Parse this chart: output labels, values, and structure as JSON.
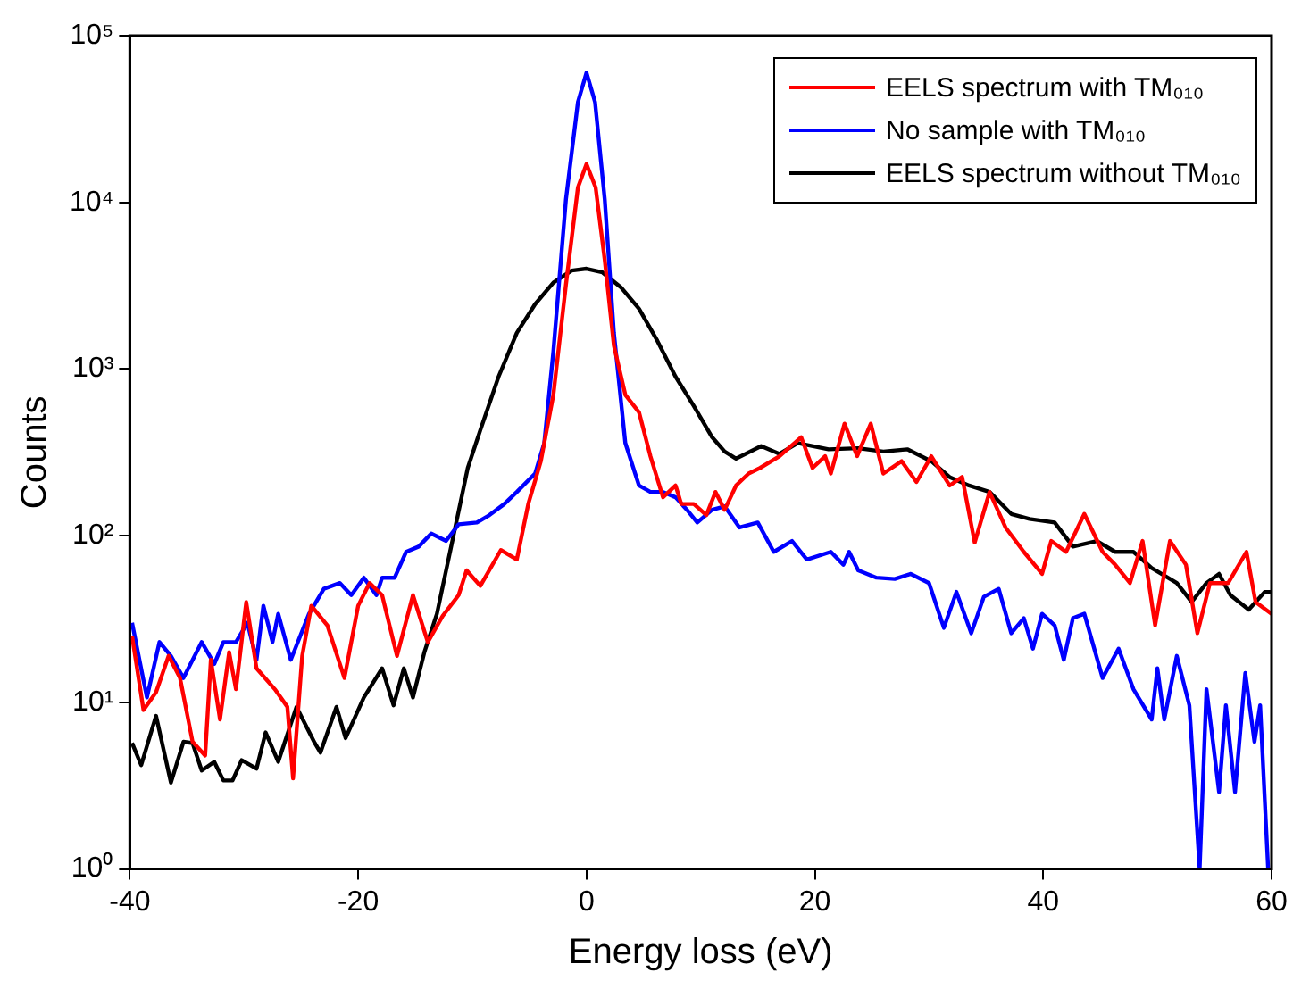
{
  "chart_data": {
    "type": "line",
    "xlabel": "Energy loss (eV)",
    "ylabel": "Counts",
    "log": "y",
    "grid": false,
    "legend": "top right",
    "marker": "none",
    "line_style": "solid",
    "xlim": [
      -40,
      60
    ],
    "xticks": [
      -40,
      -20,
      0,
      20,
      40,
      60
    ],
    "ylim": [
      1,
      100000
    ],
    "yticks": [
      {
        "value": 1,
        "label": "10⁰"
      },
      {
        "value": 10,
        "label": "10¹"
      },
      {
        "value": 100,
        "label": "10²"
      },
      {
        "value": 1000,
        "label": "10³"
      },
      {
        "value": 10000,
        "label": "10⁴"
      },
      {
        "value": 100000,
        "label": "10⁵"
      }
    ],
    "series": [
      {
        "name": "EELS spectrum with TM₀₁₀",
        "color": "#ff0000",
        "x": [
          -39.8,
          -38.8,
          -37.7,
          -36.6,
          -35.6,
          -34.5,
          -33.4,
          -32.9,
          -32.1,
          -31.3,
          -30.7,
          -29.8,
          -28.9,
          -27.3,
          -26.2,
          -25.7,
          -24.9,
          -24.1,
          -22.7,
          -21.2,
          -20,
          -19,
          -17.9,
          -16.6,
          -15.2,
          -13.9,
          -12.6,
          -11.2,
          -10.5,
          -9.3,
          -7.5,
          -6.1,
          -5.1,
          -4,
          -2.9,
          -1.8,
          -0.75,
          0,
          0.8,
          1.6,
          2.4,
          3.4,
          4.6,
          5.6,
          6.7,
          7.8,
          8.3,
          9.4,
          10.5,
          11.3,
          12.1,
          13.1,
          14.2,
          15.2,
          16.9,
          18.8,
          19.8,
          20.9,
          21.4,
          22.6,
          23.7,
          24.9,
          26,
          27.6,
          28.9,
          30.2,
          31.8,
          32.9,
          34,
          35.3,
          36.7,
          38.3,
          39.9,
          40.7,
          42,
          43.6,
          45.2,
          46.3,
          47.6,
          48.7,
          49.8,
          51.1,
          52.5,
          53.5,
          54.6,
          56.2,
          57.8,
          58.6,
          60
        ],
        "values": [
          25,
          9,
          11.5,
          19,
          14,
          5.8,
          4.8,
          18,
          7.9,
          20,
          12,
          40,
          16,
          12,
          9.4,
          3.5,
          19,
          38,
          29,
          14,
          38,
          52,
          44,
          19,
          44,
          23,
          33,
          44,
          62,
          50,
          82,
          72,
          155,
          280,
          700,
          3200,
          12300,
          17000,
          12300,
          4500,
          1380,
          700,
          550,
          300,
          170,
          200,
          155,
          155,
          133,
          183,
          143,
          200,
          236,
          255,
          300,
          390,
          255,
          300,
          236,
          470,
          300,
          470,
          236,
          280,
          210,
          300,
          200,
          225,
          91,
          183,
          112,
          80,
          59,
          93,
          80,
          135,
          80,
          67,
          52,
          93,
          29,
          93,
          67,
          26,
          52,
          52,
          80,
          40,
          34
        ]
      },
      {
        "name": "No sample with TM₀₁₀",
        "color": "#0000ff",
        "x": [
          -39.8,
          -38.5,
          -37.4,
          -36.4,
          -35.3,
          -33.7,
          -32.6,
          -31.8,
          -30.7,
          -29.7,
          -28.9,
          -28.3,
          -27.5,
          -27,
          -25.9,
          -24.3,
          -23,
          -21.6,
          -20.6,
          -19.5,
          -18.4,
          -17.9,
          -16.8,
          -15.8,
          -14.7,
          -13.6,
          -12.3,
          -11.2,
          -9.6,
          -8.5,
          -7.2,
          -6.1,
          -4.5,
          -3.7,
          -2.9,
          -1.8,
          -0.75,
          0,
          0.75,
          1.6,
          2.4,
          3.4,
          4.6,
          5.6,
          6.7,
          7.8,
          8.8,
          9.7,
          11,
          12.1,
          13.4,
          15,
          16.4,
          18,
          19.3,
          21.4,
          22.5,
          23,
          23.8,
          25.4,
          27,
          28.4,
          30,
          31.3,
          32.4,
          33.7,
          34.8,
          36.1,
          37.2,
          38.3,
          39.1,
          39.9,
          41,
          41.8,
          42.6,
          43.6,
          45.2,
          46.6,
          47.9,
          49.5,
          50,
          50.6,
          51.7,
          52.8,
          53.7,
          54.3,
          55.4,
          56,
          56.8,
          57.7,
          58.5,
          59,
          59.7
        ],
        "values": [
          30,
          10.7,
          23,
          19,
          14,
          23,
          17,
          23,
          23,
          30,
          18,
          38,
          23,
          34,
          18,
          34,
          48,
          52,
          44,
          56,
          44,
          56,
          56,
          80,
          86,
          103,
          93,
          117,
          120,
          133,
          155,
          183,
          236,
          360,
          1280,
          10400,
          40000,
          60000,
          40000,
          10400,
          1650,
          360,
          200,
          183,
          183,
          170,
          143,
          120,
          143,
          150,
          112,
          120,
          80,
          93,
          72,
          80,
          67,
          80,
          62,
          56,
          55,
          59,
          52,
          28,
          46,
          26,
          43,
          48,
          26,
          32,
          21,
          34,
          29,
          18,
          32,
          34,
          14,
          21,
          12,
          7.9,
          16,
          7.9,
          19,
          9.6,
          1,
          12,
          2.9,
          9.6,
          2.9,
          15,
          5.8,
          9.6,
          1
        ]
      },
      {
        "name": "EELS spectrum without TM₀₁₀",
        "color": "#000000",
        "x": [
          -39.8,
          -39,
          -37.7,
          -36.4,
          -35.3,
          -34.5,
          -33.7,
          -32.6,
          -31.8,
          -31,
          -30.2,
          -28.9,
          -28.1,
          -27,
          -25.4,
          -23.8,
          -23.3,
          -21.9,
          -21.1,
          -19.5,
          -17.9,
          -16.9,
          -16,
          -15.2,
          -14.2,
          -13.1,
          -11.5,
          -10.4,
          -9.3,
          -7.7,
          -6.1,
          -4.5,
          -2.9,
          -1.3,
          0,
          1.4,
          3,
          4.6,
          6.2,
          7.8,
          9.4,
          11,
          12.1,
          13.1,
          15.3,
          16.9,
          18.5,
          21.2,
          23.8,
          26,
          28.1,
          30.2,
          31.8,
          33.5,
          35.3,
          37.2,
          38.8,
          41,
          42.6,
          44.7,
          46.3,
          47.9,
          49.5,
          51.7,
          53,
          54.3,
          55.4,
          56.4,
          58,
          59.4,
          60
        ],
        "values": [
          5.7,
          4.2,
          8.3,
          3.3,
          5.8,
          5.7,
          3.9,
          4.4,
          3.4,
          3.4,
          4.5,
          4,
          6.6,
          4.4,
          9.4,
          5.7,
          5,
          9.4,
          6.1,
          10.7,
          16,
          9.6,
          16,
          10.7,
          20,
          34,
          112,
          255,
          430,
          900,
          1650,
          2450,
          3300,
          3900,
          4000,
          3800,
          3100,
          2300,
          1480,
          900,
          600,
          390,
          320,
          290,
          345,
          310,
          360,
          330,
          335,
          320,
          330,
          280,
          225,
          200,
          183,
          135,
          126,
          120,
          86,
          93,
          80,
          80,
          64,
          52,
          40,
          52,
          59,
          44,
          36,
          46,
          46
        ]
      }
    ]
  }
}
